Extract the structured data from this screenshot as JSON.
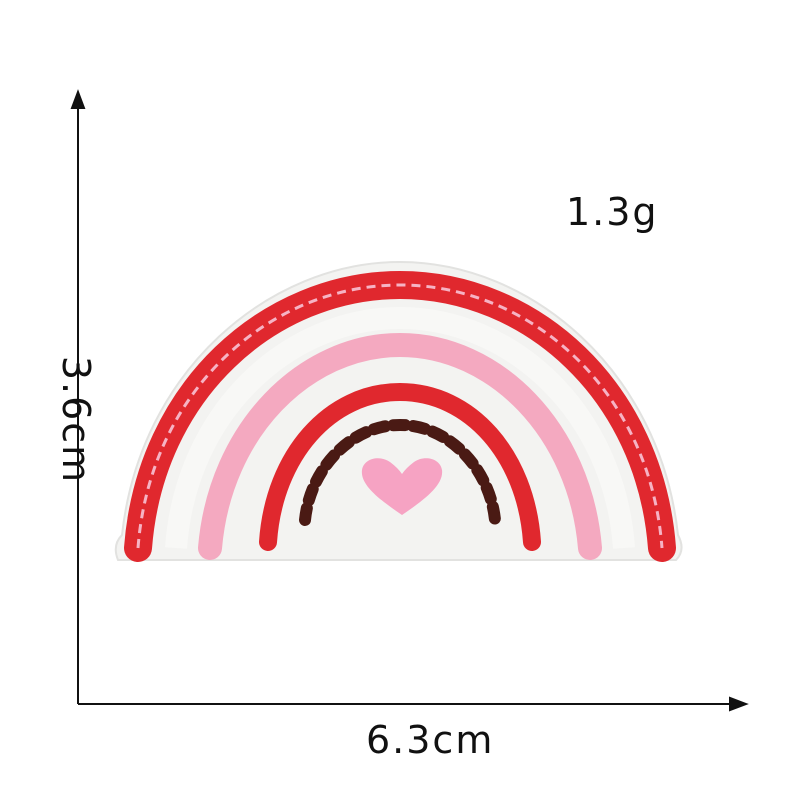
{
  "dimensions": {
    "weight": "1.3g",
    "width": "6.3cm",
    "height": "3.6cm"
  },
  "colors": {
    "background": "#ffffff",
    "axis": "#111111",
    "patch_base": "#f3f3f1",
    "red": "#e0282e",
    "pink": "#f4a9c0",
    "brown": "#4a1a14",
    "heart": "#f6a3c3"
  },
  "icons": {
    "product": "rainbow-patch-icon",
    "heart": "heart-icon"
  }
}
